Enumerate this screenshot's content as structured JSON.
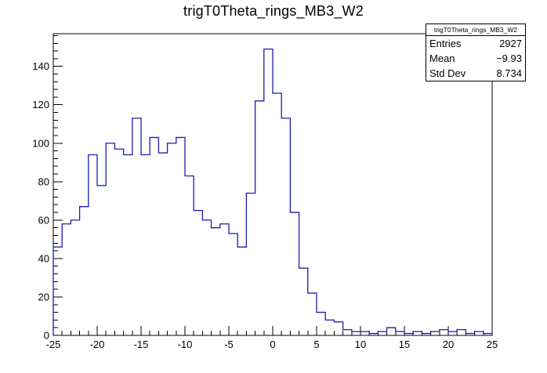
{
  "title": "trigT0Theta_rings_MB3_W2",
  "stats": {
    "title": "trigT0Theta_rings_MB3_W2",
    "rows": [
      {
        "label": "Entries",
        "value": "2927"
      },
      {
        "label": "Mean",
        "value": "−9.93"
      },
      {
        "label": "Std Dev",
        "value": "8.734"
      }
    ]
  },
  "chart_data": {
    "type": "bar",
    "subtype": "histogram-step",
    "title": "trigT0Theta_rings_MB3_W2",
    "bin_start": -25,
    "bin_width": 1,
    "values": [
      46,
      58,
      60,
      67,
      94,
      78,
      100,
      97,
      94,
      113,
      94,
      103,
      95,
      100,
      103,
      83,
      65,
      60,
      56,
      58,
      53,
      46,
      74,
      122,
      149,
      126,
      113,
      64,
      35,
      22,
      12,
      8,
      7,
      3,
      2,
      2,
      1,
      2,
      4,
      2,
      1,
      2,
      1,
      2,
      3,
      2,
      3,
      1,
      2,
      1
    ],
    "xlim": [
      -25,
      25
    ],
    "ylim": [
      0,
      157
    ],
    "x_major_ticks": [
      -25,
      -20,
      -15,
      -10,
      -5,
      0,
      5,
      10,
      15,
      20,
      25
    ],
    "y_major_ticks": [
      0,
      20,
      40,
      60,
      80,
      100,
      120,
      140
    ],
    "x_minor_step": 1,
    "y_minor_step": 4,
    "grid": false,
    "legend_position": "none",
    "line_color": "#1c1cb0",
    "frame_color": "#000000",
    "background": "#ffffff",
    "xlabel": "",
    "ylabel": ""
  }
}
